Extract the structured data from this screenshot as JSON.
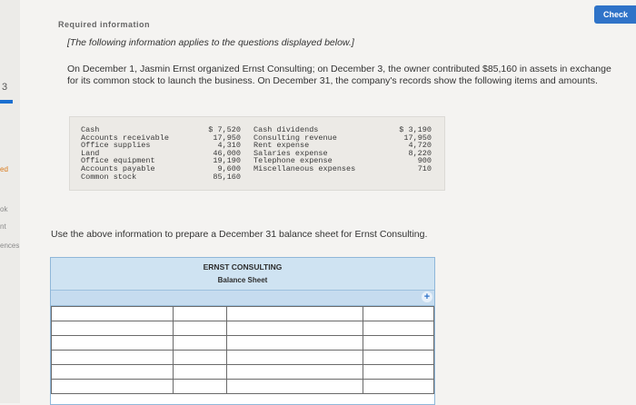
{
  "rail": {
    "num": "3",
    "ed": "ed",
    "ok": "ok",
    "nt": "nt",
    "ences": "ences"
  },
  "check_label": "Check",
  "heading": "Required information",
  "intro": "[The following information applies to the questions displayed below.]",
  "scenario": "On December 1, Jasmin Ernst organized Ernst Consulting; on December 3, the owner contributed $85,160 in assets in exchange for its common stock to launch the business. On December 31, the company's records show the following items and amounts.",
  "accounts_left": [
    {
      "name": "Cash",
      "amount": "$ 7,520"
    },
    {
      "name": "Accounts receivable",
      "amount": "17,950"
    },
    {
      "name": "Office supplies",
      "amount": "4,310"
    },
    {
      "name": "Land",
      "amount": "46,000"
    },
    {
      "name": "Office equipment",
      "amount": "19,190"
    },
    {
      "name": "Accounts payable",
      "amount": "9,600"
    },
    {
      "name": "Common stock",
      "amount": "85,160"
    }
  ],
  "accounts_right": [
    {
      "name": "Cash dividends",
      "amount": "$ 3,190"
    },
    {
      "name": "Consulting revenue",
      "amount": "17,950"
    },
    {
      "name": "Rent expense",
      "amount": "4,720"
    },
    {
      "name": "Salaries expense",
      "amount": "8,220"
    },
    {
      "name": "Telephone expense",
      "amount": "900"
    },
    {
      "name": "Miscellaneous expenses",
      "amount": "710"
    }
  ],
  "instruction": "Use the above information to prepare a December 31 balance sheet for Ernst Consulting.",
  "balance_sheet": {
    "company": "ERNST CONSULTING",
    "title": "Balance Sheet",
    "rows": 6
  }
}
